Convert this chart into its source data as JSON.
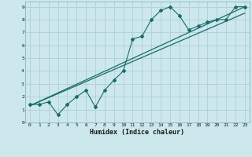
{
  "xlabel": "Humidex (Indice chaleur)",
  "bg_color": "#cce8ec",
  "grid_color": "#b0d0d4",
  "line_color": "#1a6b6b",
  "xlim": [
    -0.5,
    23.5
  ],
  "ylim": [
    0,
    9.4
  ],
  "xticks": [
    0,
    1,
    2,
    3,
    4,
    5,
    6,
    7,
    8,
    9,
    10,
    11,
    12,
    13,
    14,
    15,
    16,
    17,
    18,
    19,
    20,
    21,
    22,
    23
  ],
  "yticks": [
    0,
    1,
    2,
    3,
    4,
    5,
    6,
    7,
    8,
    9
  ],
  "line1_x": [
    0,
    1,
    2,
    3,
    4,
    5,
    6,
    7,
    8,
    9,
    10,
    11,
    12,
    13,
    14,
    15,
    16,
    17,
    18,
    19,
    20,
    21,
    22,
    23
  ],
  "line1_y": [
    1.4,
    1.4,
    1.6,
    0.6,
    1.4,
    2.0,
    2.5,
    1.2,
    2.5,
    3.3,
    4.0,
    6.5,
    6.7,
    8.0,
    8.7,
    9.0,
    8.3,
    7.2,
    7.5,
    7.8,
    8.0,
    8.0,
    9.0,
    9.0
  ],
  "line2_x": [
    0,
    23
  ],
  "line2_y": [
    1.3,
    9.0
  ],
  "line3_x": [
    0,
    23
  ],
  "line3_y": [
    1.3,
    8.5
  ]
}
